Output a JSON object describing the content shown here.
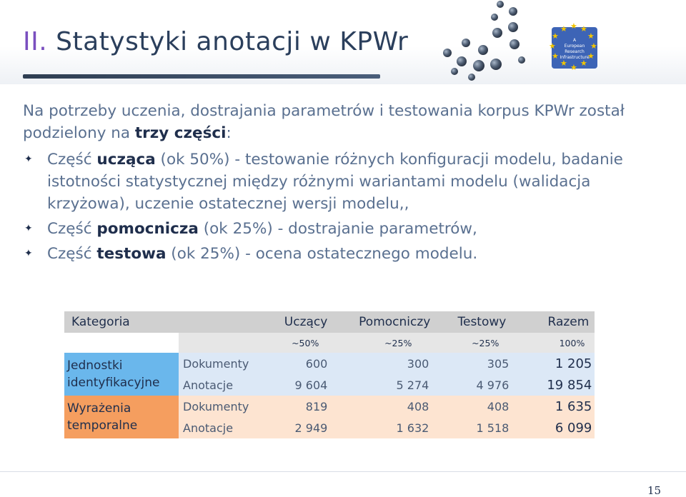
{
  "slide": {
    "number_prefix": "II.",
    "title": "Statystyki anotacji w KPWr",
    "page_number": "15"
  },
  "logo": {
    "line1": "A",
    "line2": "European",
    "line3": "Research",
    "line4": "Infrastructure"
  },
  "intro": {
    "part1": "Na potrzeby uczenia, dostrajania parametrów i testowania korpus KPWr został podzielony na ",
    "emphasis": "trzy części",
    "part2": ":"
  },
  "bullets": [
    {
      "prefix": "Część ",
      "emphasis": "ucząca",
      "rest": " (ok 50%) - testowanie różnych konfiguracji modelu, badanie istotności statystycznej między różnymi wariantami modelu (walidacja krzyżowa), uczenie ostatecznej wersji modelu,,"
    },
    {
      "prefix": "Część ",
      "emphasis": "pomocnicza",
      "rest": " (ok 25%) - dostrajanie parametrów,"
    },
    {
      "prefix": "Część ",
      "emphasis": "testowa",
      "rest": " (ok 25%) - ocena ostatecznego modelu."
    }
  ],
  "table": {
    "header": [
      "Kategoria",
      "Uczący",
      "Pomocniczy",
      "Testowy",
      "Razem"
    ],
    "shares": [
      "~50%",
      "~25%",
      "~25%",
      "100%"
    ],
    "groups": [
      {
        "category": "Jednostki identyfikacyjne",
        "color": "#6ab7ec",
        "rows": [
          {
            "label": "Dokumenty",
            "values": [
              "600",
              "300",
              "305",
              "1 205"
            ]
          },
          {
            "label": "Anotacje",
            "values": [
              "9 604",
              "5 274",
              "4 976",
              "19 854"
            ]
          }
        ]
      },
      {
        "category": "Wyrażenia temporalne",
        "color": "#f59e5f",
        "rows": [
          {
            "label": "Dokumenty",
            "values": [
              "819",
              "408",
              "408",
              "1 635"
            ]
          },
          {
            "label": "Anotacje",
            "values": [
              "2 949",
              "1 632",
              "1 518",
              "6 099"
            ]
          }
        ]
      }
    ]
  }
}
